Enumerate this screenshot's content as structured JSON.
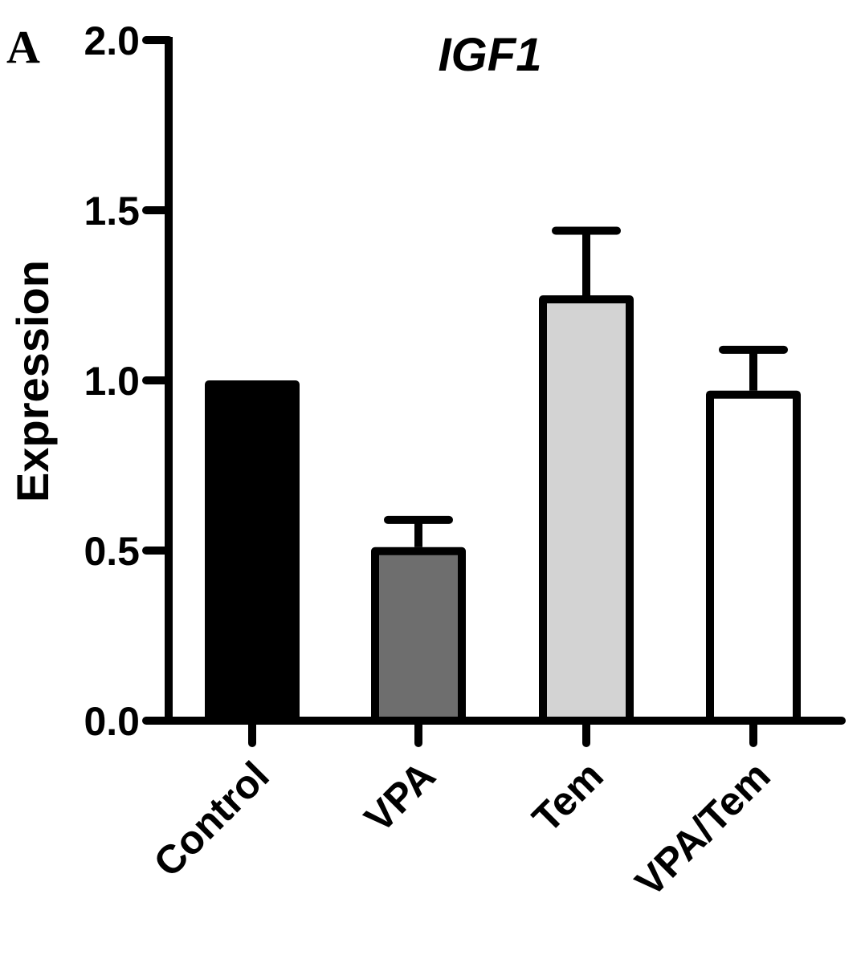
{
  "panel_label": "A",
  "chart_data": {
    "type": "bar",
    "title": "IGF1",
    "xlabel": "",
    "ylabel": "Expression",
    "ylim": [
      0,
      2.0
    ],
    "yticks": [
      0.0,
      0.5,
      1.0,
      1.5,
      2.0
    ],
    "ytick_labels": [
      "0.0",
      "0.5",
      "1.0",
      "1.5",
      "2.0"
    ],
    "categories": [
      "Control",
      "VPA",
      "Tem",
      "VPA/Tem"
    ],
    "values": [
      1.0,
      0.51,
      1.25,
      0.97
    ],
    "errors": [
      0,
      0.08,
      0.19,
      0.12
    ],
    "colors": [
      "#000000",
      "#6e6e6e",
      "#d3d3d3",
      "#ffffff"
    ],
    "grid": false,
    "legend": "none"
  }
}
